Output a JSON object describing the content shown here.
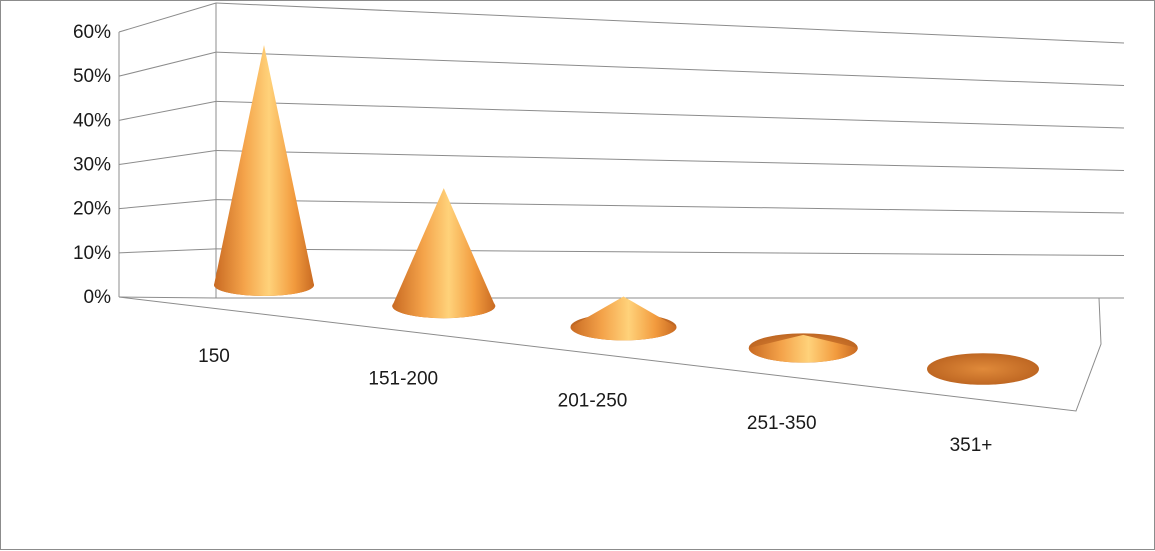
{
  "chart_data": {
    "type": "bar",
    "shape": "cone",
    "style": "3d-perspective",
    "title": "",
    "xlabel": "",
    "ylabel": "",
    "categories": [
      "150",
      "151-200",
      "201-250",
      "251-350",
      "351+"
    ],
    "values": [
      0.55,
      0.27,
      0.07,
      0.03,
      0.0
    ],
    "ylim": [
      0,
      0.6
    ],
    "yticks": [
      "0%",
      "10%",
      "20%",
      "30%",
      "40%",
      "50%",
      "60%"
    ],
    "grid": true,
    "legend": "none",
    "colors": {
      "cone_light": "#ffd27a",
      "cone_mid": "#f4a34a",
      "cone_dark": "#c96a22",
      "grid": "#8c8c8c"
    }
  }
}
